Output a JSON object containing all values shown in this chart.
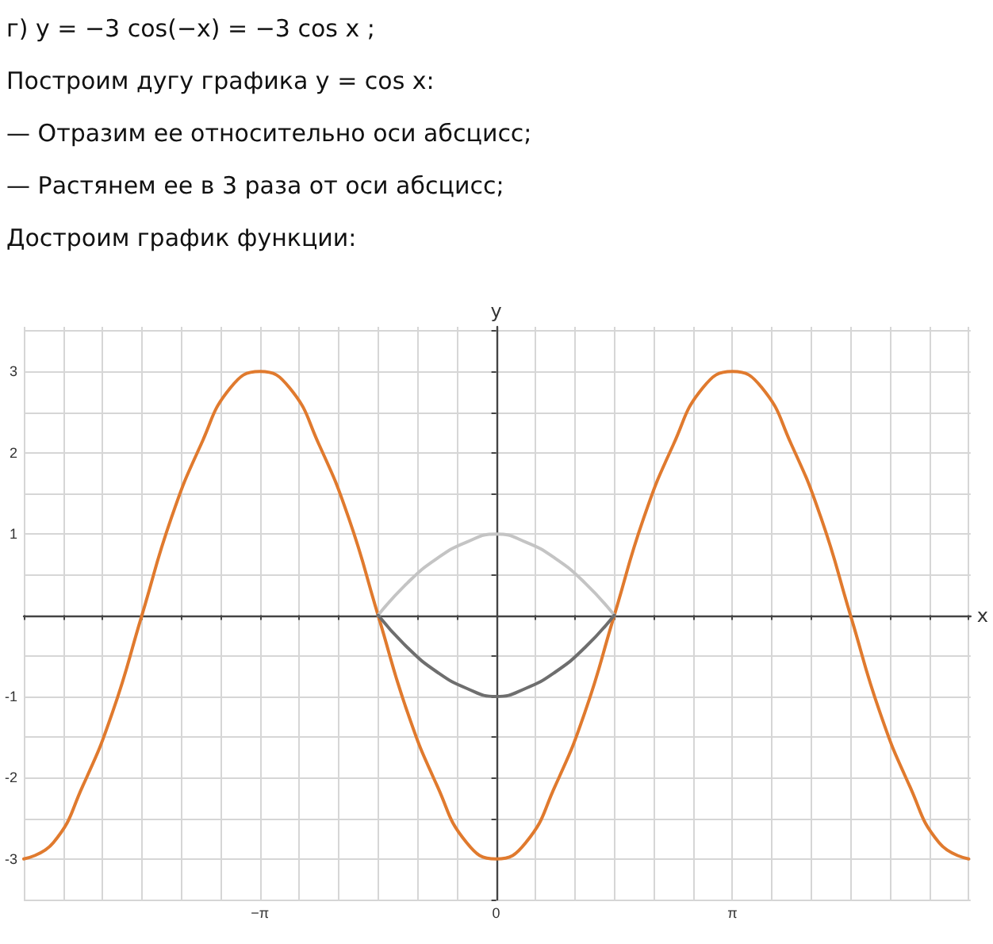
{
  "chart_data": {
    "type": "line",
    "title": "г) y = −3 cos(−x) = −3 cos x ;",
    "annotations": [
      "Построим дугу графика y = cos x:",
      "— Отразим ее относительно оси абсцисс;",
      "— Растянем ее в 3 раза от оси абсцисс;",
      "Достроим график функции:"
    ],
    "xlabel": "x",
    "ylabel": "y",
    "grid": true,
    "xlim": [
      -6.283,
      6.31
    ],
    "ylim": [
      -3.5,
      3.55
    ],
    "xticks": [
      {
        "value": -6.283,
        "label": null
      },
      {
        "value": -5.76,
        "label": null
      },
      {
        "value": -5.236,
        "label": null
      },
      {
        "value": -4.712,
        "label": null
      },
      {
        "value": -4.189,
        "label": null
      },
      {
        "value": -3.665,
        "label": null
      },
      {
        "value": -3.142,
        "label": "−π"
      },
      {
        "value": -2.618,
        "label": null
      },
      {
        "value": -2.094,
        "label": null
      },
      {
        "value": -1.571,
        "label": null
      },
      {
        "value": -1.047,
        "label": null
      },
      {
        "value": -0.524,
        "label": null
      },
      {
        "value": 0,
        "label": "0"
      },
      {
        "value": 0.524,
        "label": null
      },
      {
        "value": 1.047,
        "label": null
      },
      {
        "value": 1.571,
        "label": null
      },
      {
        "value": 2.094,
        "label": null
      },
      {
        "value": 2.618,
        "label": null
      },
      {
        "value": 3.142,
        "label": "π"
      },
      {
        "value": 3.665,
        "label": null
      },
      {
        "value": 4.189,
        "label": null
      },
      {
        "value": 4.712,
        "label": null
      },
      {
        "value": 5.236,
        "label": null
      },
      {
        "value": 5.76,
        "label": null
      },
      {
        "value": 6.283,
        "label": null
      }
    ],
    "yticks": [
      {
        "value": -3.5,
        "label": null
      },
      -3,
      {
        "value": -2.5,
        "label": null
      },
      -2,
      {
        "value": -1.5,
        "label": null
      },
      -1,
      {
        "value": -0.5,
        "label": null
      },
      {
        "value": 0.5,
        "label": null
      },
      1,
      {
        "value": 1.5,
        "label": null
      },
      2,
      {
        "value": 2.5,
        "label": null
      },
      3,
      {
        "value": 3.5,
        "label": null
      }
    ],
    "series": [
      {
        "color": "#e07a2e",
        "x": [
          -6.283,
          -5.89,
          -5.498,
          -5.105,
          -4.712,
          -4.32,
          -3.927,
          -3.534,
          -3.142,
          -2.749,
          -2.356,
          -1.963,
          -1.571,
          -1.178,
          -0.785,
          -0.393,
          0,
          0.393,
          0.785,
          1.178,
          1.571,
          1.963,
          2.356,
          2.749,
          3.142,
          3.534,
          3.927,
          4.32,
          4.712,
          5.105,
          5.498,
          5.89,
          6.283
        ],
        "values": [
          -3,
          -2.8,
          -2.1,
          -1.2,
          0,
          1.2,
          2.1,
          2.8,
          3,
          2.8,
          2.1,
          1.2,
          0,
          -1.2,
          -2.1,
          -2.8,
          -3,
          -2.8,
          -2.1,
          -1.2,
          0,
          1.2,
          2.1,
          2.8,
          3,
          2.8,
          2.1,
          1.2,
          0,
          -1.2,
          -2.1,
          -2.8,
          -3
        ]
      },
      {
        "color": "#c4c4c4",
        "x": [
          -1.571,
          -1.178,
          -0.785,
          -0.393,
          0,
          0.393,
          0.785,
          1.178,
          1.571
        ],
        "values": [
          0,
          0.4,
          0.7,
          0.9,
          1,
          0.9,
          0.7,
          0.4,
          0
        ]
      },
      {
        "color": "#6e6e6e",
        "x": [
          -1.571,
          -1.178,
          -0.785,
          -0.393,
          0,
          0.393,
          0.785,
          1.178,
          1.571
        ],
        "values": [
          0,
          -0.4,
          -0.7,
          -0.9,
          -1,
          -0.9,
          -0.7,
          -0.4,
          0
        ]
      }
    ]
  }
}
